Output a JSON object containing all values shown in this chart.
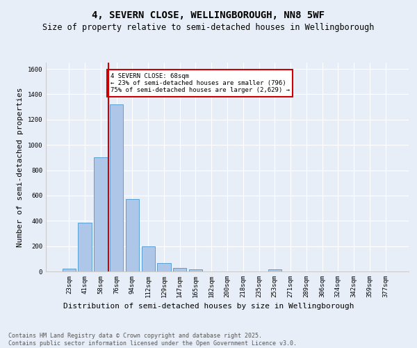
{
  "title": "4, SEVERN CLOSE, WELLINGBOROUGH, NN8 5WF",
  "subtitle": "Size of property relative to semi-detached houses in Wellingborough",
  "xlabel": "Distribution of semi-detached houses by size in Wellingborough",
  "ylabel": "Number of semi-detached properties",
  "categories": [
    "23sqm",
    "41sqm",
    "58sqm",
    "76sqm",
    "94sqm",
    "112sqm",
    "129sqm",
    "147sqm",
    "165sqm",
    "182sqm",
    "200sqm",
    "218sqm",
    "235sqm",
    "253sqm",
    "271sqm",
    "289sqm",
    "306sqm",
    "324sqm",
    "342sqm",
    "359sqm",
    "377sqm"
  ],
  "values": [
    20,
    385,
    900,
    1320,
    570,
    200,
    65,
    30,
    15,
    0,
    0,
    0,
    0,
    15,
    0,
    0,
    0,
    0,
    0,
    0,
    0
  ],
  "bar_color": "#aec6e8",
  "bar_edge_color": "#5a9fd4",
  "vline_color": "#cc0000",
  "annotation_text": "4 SEVERN CLOSE: 68sqm\n← 23% of semi-detached houses are smaller (796)\n75% of semi-detached houses are larger (2,629) →",
  "annotation_box_color": "#ffffff",
  "annotation_box_edge": "#cc0000",
  "ylim": [
    0,
    1650
  ],
  "background_color": "#e8eef7",
  "plot_bg_color": "#e8eef7",
  "footer": "Contains HM Land Registry data © Crown copyright and database right 2025.\nContains public sector information licensed under the Open Government Licence v3.0.",
  "title_fontsize": 10,
  "subtitle_fontsize": 8.5,
  "xlabel_fontsize": 8,
  "ylabel_fontsize": 8,
  "tick_fontsize": 6.5,
  "footer_fontsize": 6
}
